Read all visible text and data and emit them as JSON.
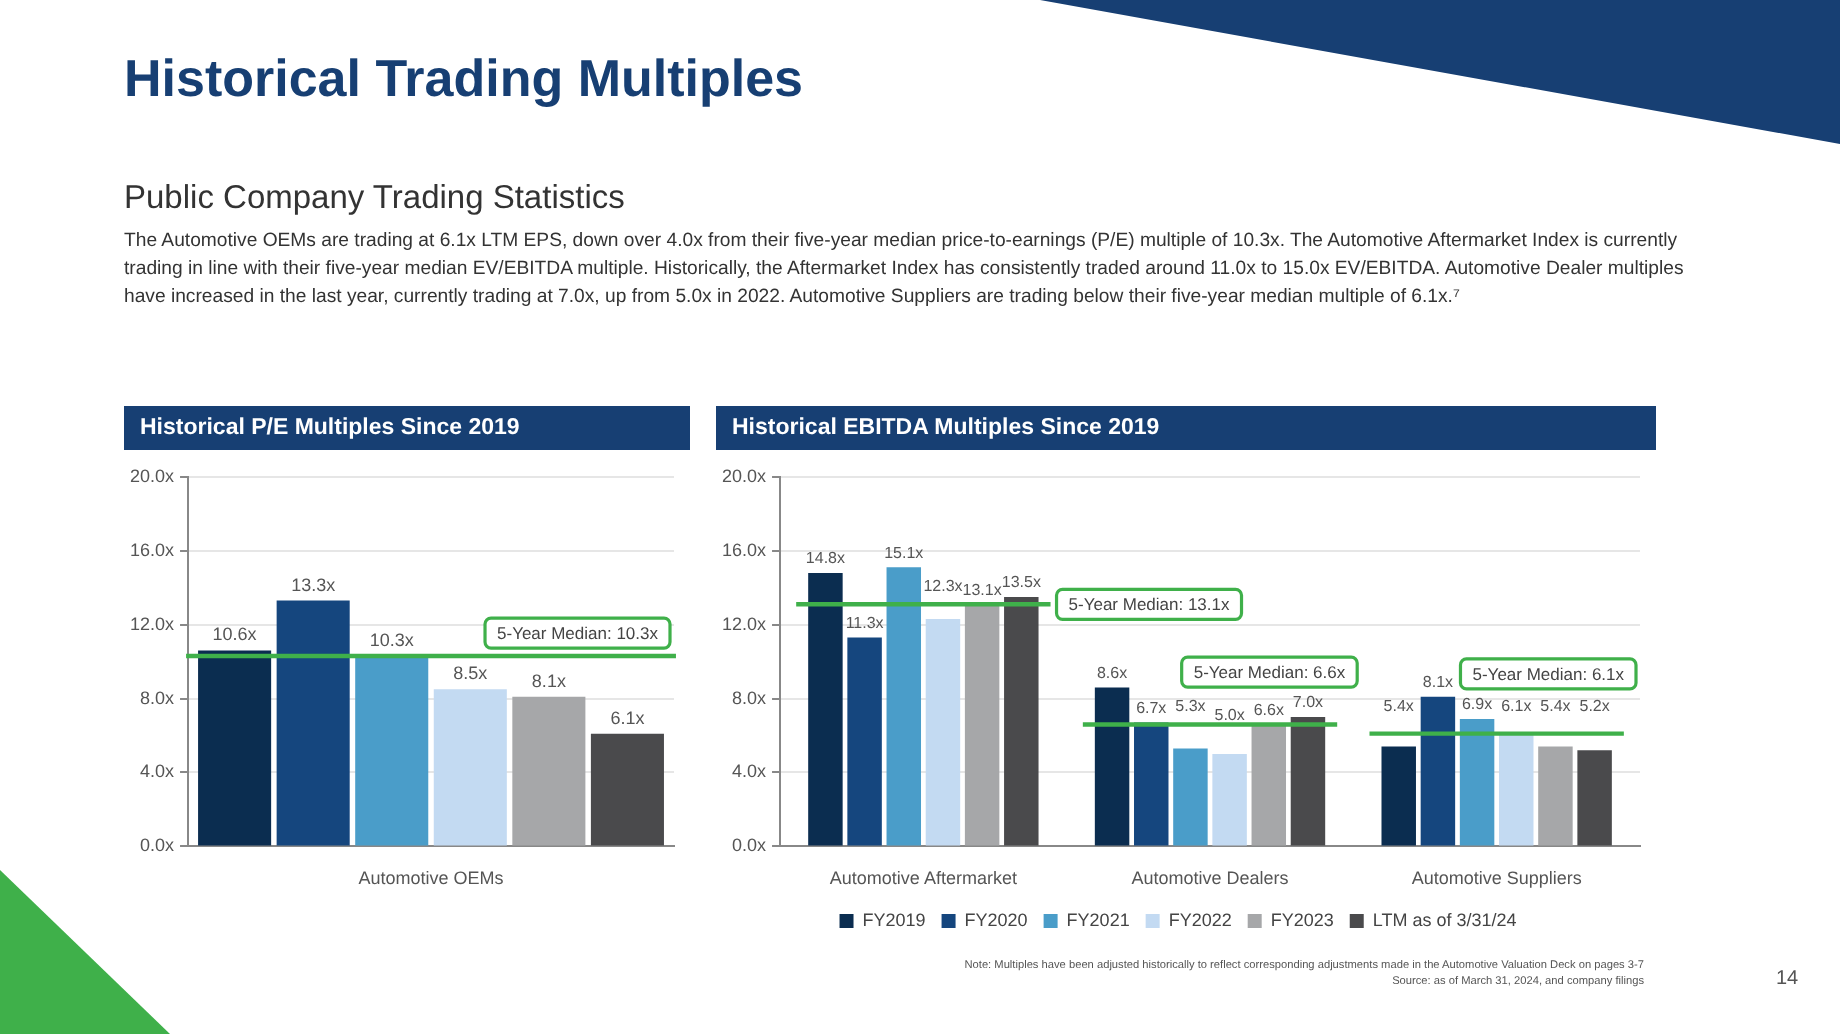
{
  "chart_data": [
    {
      "type": "other",
      "title": "Historical Trading Multiples",
      "subtitle": "Public Company Trading Statistics",
      "annotations": [
        "The Automotive OEMs are trading at 6.1x LTM EPS, down over 4.0x from their five-year median price-to-earnings (P/E) multiple of 10.3x. The Automotive Aftermarket Index is currently trading in line with their five-year median EV/EBITDA multiple. Historically, the Aftermarket Index has consistently traded around 11.0x to 15.0x EV/EBITDA. Automotive Dealer multiples have increased in the last year, currently trading at 7.0x, up from 5.0x in 2022. Automotive Suppliers are trading below their five-year median multiple of 6.1x.⁷",
        "Note: Multiples have been adjusted historically to reflect corresponding adjustments made in the Automotive Valuation Deck on pages 3-7",
        "Source: as of March 31, 2024, and company filings",
        "14"
      ]
    },
    {
      "type": "bar",
      "title": "Historical P/E Multiples Since 2019",
      "categories": [
        "Automotive OEMs"
      ],
      "series": [
        {
          "color": "#0b2d50",
          "values": [
            10.6
          ],
          "value_labels": [
            "10.6x"
          ]
        },
        {
          "color": "#15467e",
          "values": [
            13.3
          ],
          "value_labels": [
            "13.3x"
          ]
        },
        {
          "color": "#4a9dc9",
          "values": [
            10.3
          ],
          "value_labels": [
            "10.3x"
          ]
        },
        {
          "color": "#c3daf2",
          "values": [
            8.5
          ],
          "value_labels": [
            "8.5x"
          ]
        },
        {
          "color": "#a6a7a9",
          "values": [
            8.1
          ],
          "value_labels": [
            "8.1x"
          ]
        },
        {
          "color": "#4a4a4c",
          "values": [
            6.1
          ],
          "value_labels": [
            "6.1x"
          ]
        }
      ],
      "ylim": [
        0,
        20
      ],
      "yticks": [
        {
          "value": 0,
          "label": "0.0x"
        },
        {
          "value": 4,
          "label": "4.0x"
        },
        {
          "value": 8,
          "label": "8.0x"
        },
        {
          "value": 12,
          "label": "12.0x"
        },
        {
          "value": 16,
          "label": "16.0x"
        },
        {
          "value": 20,
          "label": "20.0x"
        }
      ],
      "grid": "y",
      "legend": false,
      "ref_lines": [
        {
          "axis": "y",
          "value": 10.3,
          "label": "5-Year Median: 10.3x",
          "color": "#3fb04a"
        }
      ]
    },
    {
      "type": "bar",
      "title": "Historical EBITDA Multiples Since 2019",
      "categories": [
        "Automotive Aftermarket",
        "Automotive Dealers",
        "Automotive Suppliers"
      ],
      "series": [
        {
          "name": "FY2019",
          "color": "#0b2d50",
          "values": [
            14.8,
            8.6,
            5.4
          ],
          "value_labels": [
            "14.8x",
            "8.6x",
            "5.4x"
          ]
        },
        {
          "name": "FY2020",
          "color": "#15467e",
          "values": [
            11.3,
            6.7,
            8.1
          ],
          "value_labels": [
            "11.3x",
            "6.7x",
            "8.1x"
          ]
        },
        {
          "name": "FY2021",
          "color": "#4a9dc9",
          "values": [
            15.1,
            5.3,
            6.9
          ],
          "value_labels": [
            "15.1x",
            "5.3x",
            "6.9x"
          ]
        },
        {
          "name": "FY2022",
          "color": "#c3daf2",
          "values": [
            12.3,
            5.0,
            6.1
          ],
          "value_labels": [
            "12.3x",
            "5.0x",
            "6.1x"
          ]
        },
        {
          "name": "FY2023",
          "color": "#a6a7a9",
          "values": [
            13.1,
            6.6,
            5.4
          ],
          "value_labels": [
            "13.1x",
            "6.6x",
            "5.4x"
          ]
        },
        {
          "name": "LTM as of 3/31/24",
          "color": "#4a4a4c",
          "values": [
            13.5,
            7.0,
            5.2
          ],
          "value_labels": [
            "13.5x",
            "7.0x",
            "5.2x"
          ]
        }
      ],
      "ylim": [
        0,
        20
      ],
      "yticks": [
        {
          "value": 0,
          "label": "0.0x"
        },
        {
          "value": 4,
          "label": "4.0x"
        },
        {
          "value": 8,
          "label": "8.0x"
        },
        {
          "value": 12,
          "label": "12.0x"
        },
        {
          "value": 16,
          "label": "16.0x"
        },
        {
          "value": 20,
          "label": "20.0x"
        }
      ],
      "grid": "y",
      "legend": "bottom",
      "ref_lines": [
        {
          "axis": "y",
          "value": 13.1,
          "label": "5-Year Median: 13.1x",
          "color": "#3fb04a"
        },
        {
          "axis": "y",
          "value": 6.6,
          "label": "5-Year Median: 6.6x",
          "color": "#3fb04a"
        },
        {
          "axis": "y",
          "value": 6.1,
          "label": "5-Year Median: 6.1x",
          "color": "#3fb04a"
        }
      ]
    }
  ]
}
